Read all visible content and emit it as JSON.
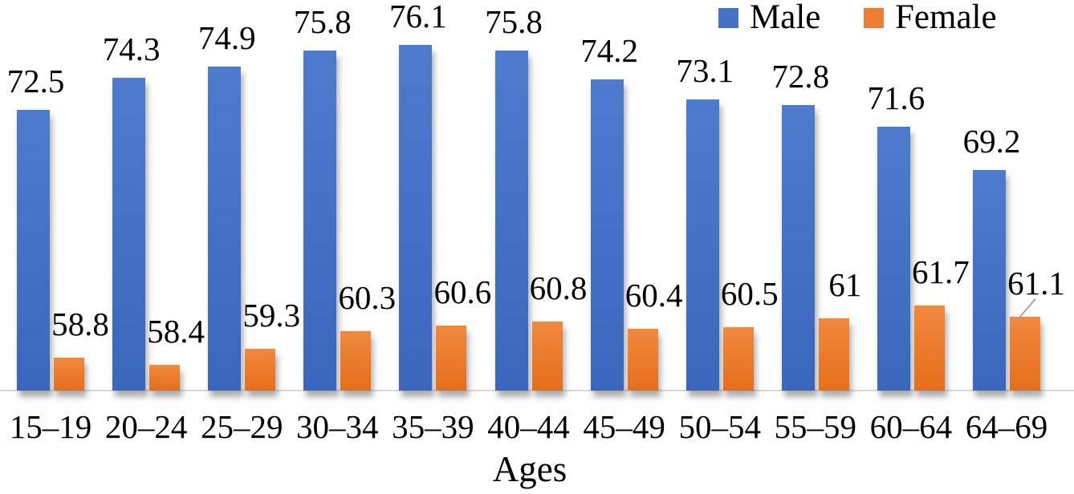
{
  "chart_data": {
    "type": "bar",
    "title": "",
    "xlabel": "Ages",
    "ylabel": "",
    "categories": [
      "15–19",
      "20–24",
      "25–29",
      "30–34",
      "35–39",
      "40–44",
      "45–49",
      "50–54",
      "55–59",
      "60–64",
      "64–69"
    ],
    "series": [
      {
        "name": "Male",
        "color": "#4472C4",
        "color_top": "#4e7bce",
        "color_bottom": "#3a67bd",
        "values": [
          72.5,
          74.3,
          74.9,
          75.8,
          76.1,
          75.8,
          74.2,
          73.1,
          72.8,
          71.6,
          69.2
        ]
      },
      {
        "name": "Female",
        "color": "#ED7D31",
        "color_top": "#f0893f",
        "color_bottom": "#e66e1a",
        "values": [
          58.8,
          58.4,
          59.3,
          60.3,
          60.6,
          60.8,
          60.4,
          60.5,
          61,
          61.7,
          61.1
        ]
      }
    ],
    "value_baseline": 57,
    "ylim": [
      57,
      77.2
    ],
    "grid": false,
    "y_axis_visible": false,
    "data_labels": true,
    "legend_position": "top-right",
    "axis_line_color": "#d9d9d9",
    "leader_line_on_last_female": true,
    "leader_line_color": "#a6a6a6"
  }
}
